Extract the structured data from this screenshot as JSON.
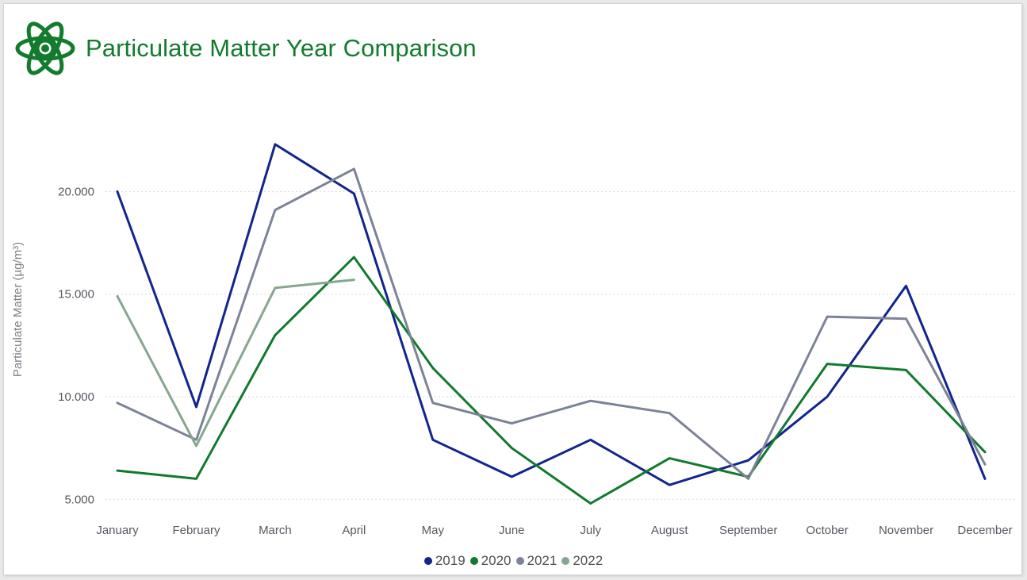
{
  "header": {
    "title": "Particulate Matter Year Comparison",
    "logo_icon": "atom-icon",
    "logo_color": "#137b2e"
  },
  "chart_data": {
    "type": "line",
    "title": "Particulate Matter Year Comparison",
    "xlabel": "",
    "ylabel": "Particulate Matter (µg/m³)",
    "ylim": [
      4.2,
      24.5
    ],
    "yticks": [
      5,
      10,
      15,
      20
    ],
    "ytick_labels": [
      "5.000",
      "10.000",
      "15.000",
      "20.000"
    ],
    "grid": true,
    "legend_position": "bottom-center",
    "categories": [
      "January",
      "February",
      "March",
      "April",
      "May",
      "June",
      "July",
      "August",
      "September",
      "October",
      "November",
      "December"
    ],
    "series": [
      {
        "name": "2019",
        "color": "#12258c",
        "values": [
          20.0,
          9.5,
          22.3,
          19.9,
          7.9,
          6.1,
          7.9,
          5.7,
          6.9,
          10.0,
          15.4,
          6.0
        ]
      },
      {
        "name": "2020",
        "color": "#117a2d",
        "values": [
          6.4,
          6.0,
          13.0,
          16.8,
          11.4,
          7.5,
          4.8,
          7.0,
          6.1,
          11.6,
          11.3,
          7.3
        ]
      },
      {
        "name": "2021",
        "color": "#7c8397",
        "values": [
          9.7,
          7.9,
          19.1,
          21.1,
          9.7,
          8.7,
          9.8,
          9.2,
          6.0,
          13.9,
          13.8,
          6.7
        ]
      },
      {
        "name": "2022",
        "color": "#86a68f",
        "values": [
          14.9,
          7.6,
          15.3,
          15.7,
          null,
          null,
          null,
          null,
          null,
          null,
          null,
          null
        ]
      }
    ]
  }
}
